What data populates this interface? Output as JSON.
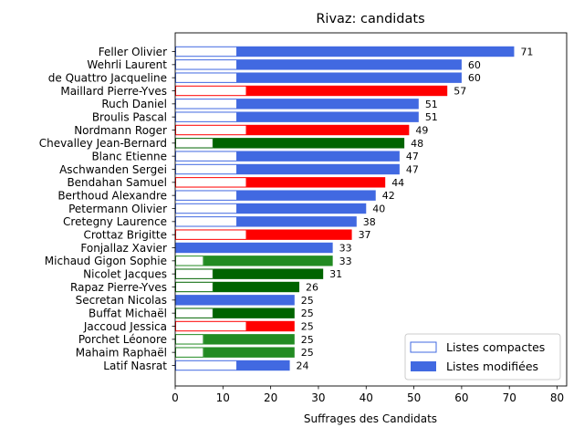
{
  "chart_data": {
    "type": "bar",
    "orientation": "horizontal",
    "title": "Rivaz: candidats",
    "xlabel": "Suffrages des Candidats",
    "ylabel": "",
    "xlim": [
      0,
      82
    ],
    "xticks": [
      0,
      10,
      20,
      30,
      40,
      50,
      60,
      70,
      80
    ],
    "grid": false,
    "legend": {
      "placement": "lower-right",
      "entries": [
        {
          "key": "compact",
          "label": "Listes compactes"
        },
        {
          "key": "modified",
          "label": "Listes modifiées"
        }
      ]
    },
    "colors": {
      "blue": "#4169e1",
      "red": "#ff0000",
      "darkgreen": "#006400",
      "green": "#228b22"
    },
    "series": [
      {
        "name": "Listes compactes",
        "key": "compact",
        "style": "outline"
      },
      {
        "name": "Listes modifiées",
        "key": "modified",
        "style": "filled"
      }
    ],
    "bars": [
      {
        "name": "Feller Olivier",
        "total": 71,
        "compact": 13,
        "color": "blue"
      },
      {
        "name": "Wehrli Laurent",
        "total": 60,
        "compact": 13,
        "color": "blue"
      },
      {
        "name": "de Quattro Jacqueline",
        "total": 60,
        "compact": 13,
        "color": "blue"
      },
      {
        "name": "Maillard Pierre-Yves",
        "total": 57,
        "compact": 15,
        "color": "red"
      },
      {
        "name": "Ruch Daniel",
        "total": 51,
        "compact": 13,
        "color": "blue"
      },
      {
        "name": "Broulis Pascal",
        "total": 51,
        "compact": 13,
        "color": "blue"
      },
      {
        "name": "Nordmann Roger",
        "total": 49,
        "compact": 15,
        "color": "red"
      },
      {
        "name": "Chevalley Jean-Bernard",
        "total": 48,
        "compact": 8,
        "color": "darkgreen"
      },
      {
        "name": "Blanc Etienne",
        "total": 47,
        "compact": 13,
        "color": "blue"
      },
      {
        "name": "Aschwanden Sergei",
        "total": 47,
        "compact": 13,
        "color": "blue"
      },
      {
        "name": "Bendahan Samuel",
        "total": 44,
        "compact": 15,
        "color": "red"
      },
      {
        "name": "Berthoud Alexandre",
        "total": 42,
        "compact": 13,
        "color": "blue"
      },
      {
        "name": "Petermann Olivier",
        "total": 40,
        "compact": 13,
        "color": "blue"
      },
      {
        "name": "Cretegny Laurence",
        "total": 38,
        "compact": 13,
        "color": "blue"
      },
      {
        "name": "Crottaz Brigitte",
        "total": 37,
        "compact": 15,
        "color": "red"
      },
      {
        "name": "Fonjallaz Xavier",
        "total": 33,
        "compact": 0,
        "color": "blue"
      },
      {
        "name": "Michaud Gigon Sophie",
        "total": 33,
        "compact": 6,
        "color": "green"
      },
      {
        "name": "Nicolet Jacques",
        "total": 31,
        "compact": 8,
        "color": "darkgreen"
      },
      {
        "name": "Rapaz Pierre-Yves",
        "total": 26,
        "compact": 8,
        "color": "darkgreen"
      },
      {
        "name": "Secretan Nicolas",
        "total": 25,
        "compact": 0,
        "color": "blue"
      },
      {
        "name": "Buffat Michaël",
        "total": 25,
        "compact": 8,
        "color": "darkgreen"
      },
      {
        "name": "Jaccoud Jessica",
        "total": 25,
        "compact": 15,
        "color": "red"
      },
      {
        "name": "Porchet Léonore",
        "total": 25,
        "compact": 6,
        "color": "green"
      },
      {
        "name": "Mahaim Raphaël",
        "total": 25,
        "compact": 6,
        "color": "green"
      },
      {
        "name": "Latif Nasrat",
        "total": 24,
        "compact": 13,
        "color": "blue"
      }
    ]
  }
}
